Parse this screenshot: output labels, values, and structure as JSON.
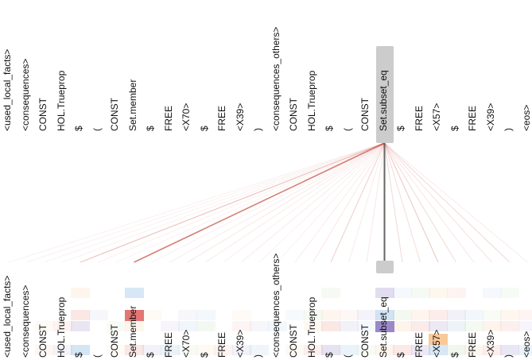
{
  "top_tokens": [
    "<used_local_facts>",
    "<consequences>",
    "CONST",
    "HOL.Trueprop",
    "$",
    "(",
    "CONST",
    "Set.member",
    "$",
    "FREE",
    "<X70>",
    "$",
    "FREE",
    "<X39>",
    ")",
    "<consequences_others>",
    "CONST",
    "HOL.Trueprop",
    "$",
    "(",
    "CONST",
    "Set.subset_eq",
    "$",
    "FREE",
    "<X57>",
    "$",
    "FREE",
    "<X39>",
    ")",
    "<eos>"
  ],
  "bottom_tokens": [
    "<used_local_facts>",
    "<consequences>",
    "CONST",
    "HOL.Trueprop",
    "$",
    "(",
    "CONST",
    "Set.member",
    "$",
    "FREE",
    "<X70>",
    "$",
    "FREE",
    "<X39>",
    ")",
    "<consequences_others>",
    "CONST",
    "HOL.Trueprop",
    "$",
    "(",
    "CONST",
    "Set.subset_eq",
    "$",
    "FREE",
    "<X57>",
    "$",
    "FREE",
    "<X39>",
    ")",
    "<eos>"
  ],
  "selected_top_index": 21,
  "selected_bottom_index": 21,
  "attention": [
    0.05,
    0.06,
    0.05,
    0.06,
    0.35,
    0.08,
    0.07,
    0.75,
    0.08,
    0.1,
    0.12,
    0.1,
    0.08,
    0.1,
    0.06,
    0.07,
    0.1,
    0.12,
    0.25,
    0.1,
    0.12,
    0.7,
    0.2,
    0.18,
    0.3,
    0.2,
    0.12,
    0.15,
    0.2,
    0.1
  ],
  "colors": {
    "line": "#c0392b",
    "selected_line": "#555555",
    "highlight": "#cccccc",
    "heat": [
      "#e67e6e",
      "#8e7cc3",
      "#6fa8dc",
      "#93c47d",
      "#f6b26b"
    ]
  }
}
